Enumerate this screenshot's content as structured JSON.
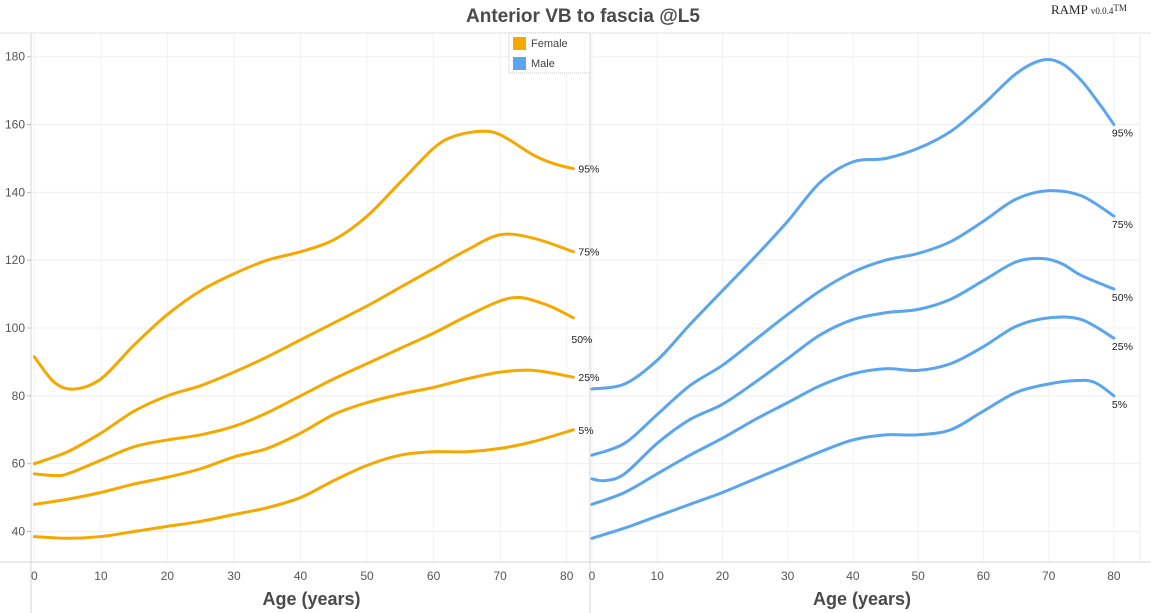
{
  "chart_data": {
    "type": "line",
    "title": "Anterior VB to fascia @L5",
    "brand": {
      "name": "RAMP",
      "version": "v0.0.4",
      "mark": "TM"
    },
    "ylim": [
      31,
      187
    ],
    "y_ticks": [
      40,
      60,
      80,
      100,
      120,
      140,
      160,
      180
    ],
    "grid": true,
    "legend": {
      "placement": "top-center",
      "entries": [
        {
          "name": "Female",
          "color": "#f5a800"
        },
        {
          "name": "Male",
          "color": "#5aa5ee"
        }
      ]
    },
    "panels": [
      {
        "name": "Female",
        "color": "#f5a800",
        "xlabel": "Age (years)",
        "xlim": [
          -0.5,
          83.5
        ],
        "x_ticks": [
          0,
          10,
          20,
          30,
          40,
          50,
          60,
          70,
          80
        ],
        "series": [
          {
            "name": "95%",
            "x": [
              0,
              3,
              6,
              10,
              15,
              20,
              25,
              30,
              35,
              40,
              45,
              50,
              55,
              60,
              63,
              67,
              70,
              75,
              78,
              81
            ],
            "y": [
              91.5,
              84,
              82,
              85,
              95,
              104,
              111,
              116,
              120,
              122.5,
              126,
              133,
              143,
              153,
              156.5,
              158,
              157,
              151,
              148.5,
              147
            ]
          },
          {
            "name": "75%",
            "x": [
              0,
              5,
              10,
              15,
              20,
              25,
              30,
              35,
              40,
              45,
              50,
              55,
              60,
              65,
              70,
              75,
              81
            ],
            "y": [
              60,
              63.5,
              69,
              75.5,
              80,
              83,
              87,
              91.5,
              96.5,
              101.5,
              106.5,
              112,
              117.5,
              123,
              127.5,
              126.5,
              122.5
            ]
          },
          {
            "name": "50%",
            "x": [
              0,
              3,
              5,
              10,
              15,
              20,
              25,
              30,
              35,
              40,
              45,
              50,
              55,
              60,
              65,
              70,
              73,
              76,
              78,
              81
            ],
            "y": [
              57,
              56.5,
              57,
              61,
              65,
              67,
              68.5,
              71,
              75,
              80,
              85,
              89.5,
              94,
              98.5,
              103.5,
              108,
              109,
              107.5,
              106,
              103
            ]
          },
          {
            "name": "25%",
            "x": [
              0,
              5,
              10,
              15,
              20,
              25,
              30,
              35,
              40,
              45,
              50,
              55,
              60,
              65,
              70,
              75,
              81
            ],
            "y": [
              48,
              49.5,
              51.5,
              54,
              56,
              58.5,
              62,
              64.5,
              69,
              74.5,
              78,
              80.5,
              82.5,
              85,
              87,
              87.5,
              85.5
            ]
          },
          {
            "name": "5%",
            "x": [
              0,
              5,
              10,
              15,
              20,
              25,
              30,
              35,
              40,
              45,
              50,
              55,
              60,
              65,
              70,
              75,
              81
            ],
            "y": [
              38.5,
              38,
              38.5,
              40,
              41.5,
              43,
              45,
              47,
              50,
              55,
              59.5,
              62.5,
              63.5,
              63.5,
              64.5,
              66.5,
              70
            ]
          }
        ],
        "label_x": 81
      },
      {
        "name": "Male",
        "color": "#5aa5ee",
        "xlabel": "Age (years)",
        "xlim": [
          -0.3,
          84
        ],
        "x_ticks": [
          0,
          10,
          20,
          30,
          40,
          50,
          60,
          70,
          80
        ],
        "series": [
          {
            "name": "95%",
            "x": [
              0,
              5,
              10,
              15,
              20,
              25,
              30,
              35,
              40,
              45,
              50,
              55,
              60,
              65,
              69,
              72,
              75,
              78,
              80
            ],
            "y": [
              82,
              83.5,
              90.5,
              101,
              111,
              121,
              131.5,
              143,
              149,
              150,
              153,
              158,
              166,
              175,
              179,
              178,
              173,
              165.5,
              160
            ]
          },
          {
            "name": "75%",
            "x": [
              0,
              5,
              10,
              15,
              20,
              25,
              30,
              35,
              40,
              45,
              50,
              55,
              60,
              65,
              70,
              75,
              80
            ],
            "y": [
              62.5,
              66,
              74.5,
              83,
              89,
              96.5,
              104,
              111,
              116.5,
              120,
              122,
              125.5,
              131.5,
              138,
              140.5,
              139,
              133
            ]
          },
          {
            "name": "50%",
            "x": [
              0,
              2,
              5,
              10,
              15,
              20,
              25,
              30,
              35,
              40,
              45,
              50,
              55,
              60,
              65,
              69,
              72,
              75,
              80
            ],
            "y": [
              55.5,
              55,
              57,
              66,
              73,
              77.5,
              84,
              91,
              98,
              102.5,
              104.5,
              105.5,
              108.5,
              114,
              119.5,
              120.5,
              119,
              115.5,
              111.5
            ]
          },
          {
            "name": "25%",
            "x": [
              0,
              5,
              10,
              15,
              20,
              25,
              30,
              35,
              40,
              45,
              50,
              55,
              60,
              65,
              70,
              75,
              80
            ],
            "y": [
              48,
              51.5,
              57,
              62.5,
              67.5,
              73,
              78,
              83,
              86.5,
              88,
              87.5,
              89.5,
              94.5,
              100.5,
              103,
              102.5,
              97
            ]
          },
          {
            "name": "5%",
            "x": [
              0,
              5,
              10,
              15,
              20,
              25,
              30,
              35,
              40,
              45,
              50,
              55,
              60,
              65,
              70,
              74,
              77,
              80
            ],
            "y": [
              38,
              41,
              44.5,
              48,
              51.5,
              55.5,
              59.5,
              63.5,
              67,
              68.5,
              68.5,
              70,
              75.5,
              81,
              83.5,
              84.5,
              84,
              80
            ]
          }
        ],
        "label_x": 80
      }
    ]
  }
}
